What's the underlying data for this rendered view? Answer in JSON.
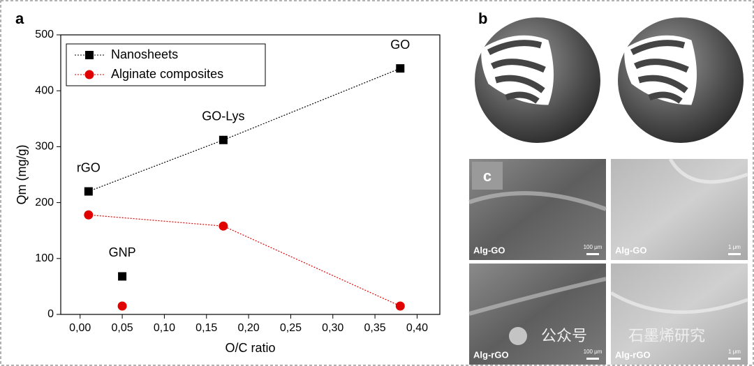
{
  "panel_labels": [
    "a",
    "b",
    "c"
  ],
  "chart_data": {
    "type": "scatter",
    "x_label": "O/C ratio",
    "y_label": "Qm (mg/g)",
    "x": [
      0.01,
      0.05,
      0.17,
      0.38
    ],
    "point_labels": [
      "rGO",
      "GNP",
      "GO-Lys",
      "GO"
    ],
    "linked": [
      true,
      false,
      true,
      true
    ],
    "series": [
      {
        "name": "Nanosheets",
        "color": "#000000",
        "marker": "square",
        "values": [
          220,
          68,
          312,
          440
        ]
      },
      {
        "name": "Alginate composites",
        "color": "#e00000",
        "marker": "circle",
        "values": [
          178,
          15,
          158,
          15
        ]
      }
    ],
    "xlim": [
      -0.023,
      0.427
    ],
    "xticks": [
      {
        "value": 0,
        "label": "0,00"
      },
      {
        "value": 0.05,
        "label": "0,05"
      },
      {
        "value": 0.1,
        "label": "0,10"
      },
      {
        "value": 0.15,
        "label": "0,15"
      },
      {
        "value": 0.2,
        "label": "0,20"
      },
      {
        "value": 0.25,
        "label": "0,25"
      },
      {
        "value": 0.3,
        "label": "0,30"
      },
      {
        "value": 0.35,
        "label": "0,35"
      },
      {
        "value": 0.4,
        "label": "0,40"
      }
    ],
    "ylim": [
      0,
      500
    ],
    "yticks": [
      0,
      100,
      200,
      300,
      400,
      500
    ],
    "legend": "top-left",
    "grid": false
  },
  "micrographs": [
    {
      "label": "Alg-GO",
      "scale": "100 μm"
    },
    {
      "label": "Alg-GO",
      "scale": "1 μm"
    },
    {
      "label": "Alg-rGO",
      "scale": "100 μm"
    },
    {
      "label": "Alg-rGO",
      "scale": "1 μm"
    }
  ],
  "watermark": [
    "公众号",
    "石墨烯研究"
  ]
}
